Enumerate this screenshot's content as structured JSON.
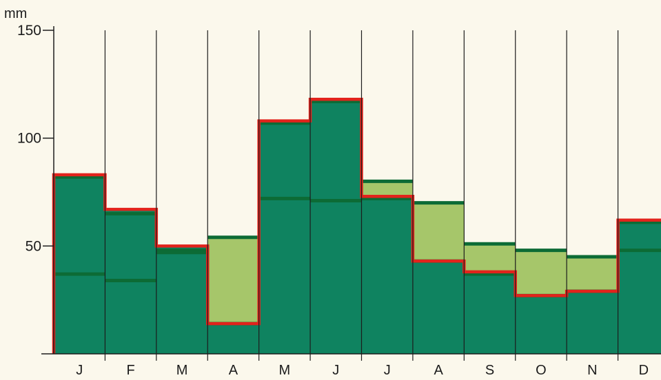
{
  "chart_data": {
    "type": "bar",
    "ylabel": "mm",
    "ylim": [
      0,
      150
    ],
    "yticks": [
      50,
      100,
      150
    ],
    "categories": [
      "J",
      "F",
      "M",
      "A",
      "M",
      "J",
      "J",
      "A",
      "S",
      "O",
      "N",
      "D"
    ],
    "series": [
      {
        "values": [
          83,
          67,
          50,
          14,
          108,
          118,
          73,
          43,
          38,
          27,
          29,
          62
        ]
      },
      {
        "values": [
          82,
          65,
          48,
          54,
          107,
          117,
          80,
          70,
          51,
          48,
          45,
          61
        ]
      },
      {
        "values": [
          37,
          34,
          47,
          14,
          72,
          71,
          72,
          43,
          37,
          27,
          29,
          48
        ]
      }
    ],
    "grid": "vertical",
    "legend": "none",
    "colors": {
      "background": "#fbf8ec",
      "dark_fill": "#0f8360",
      "light_fill": "#a6c66a",
      "level_line": "#0c6b35",
      "outline": "#e2231c",
      "axis": "#1c1c1c"
    }
  }
}
